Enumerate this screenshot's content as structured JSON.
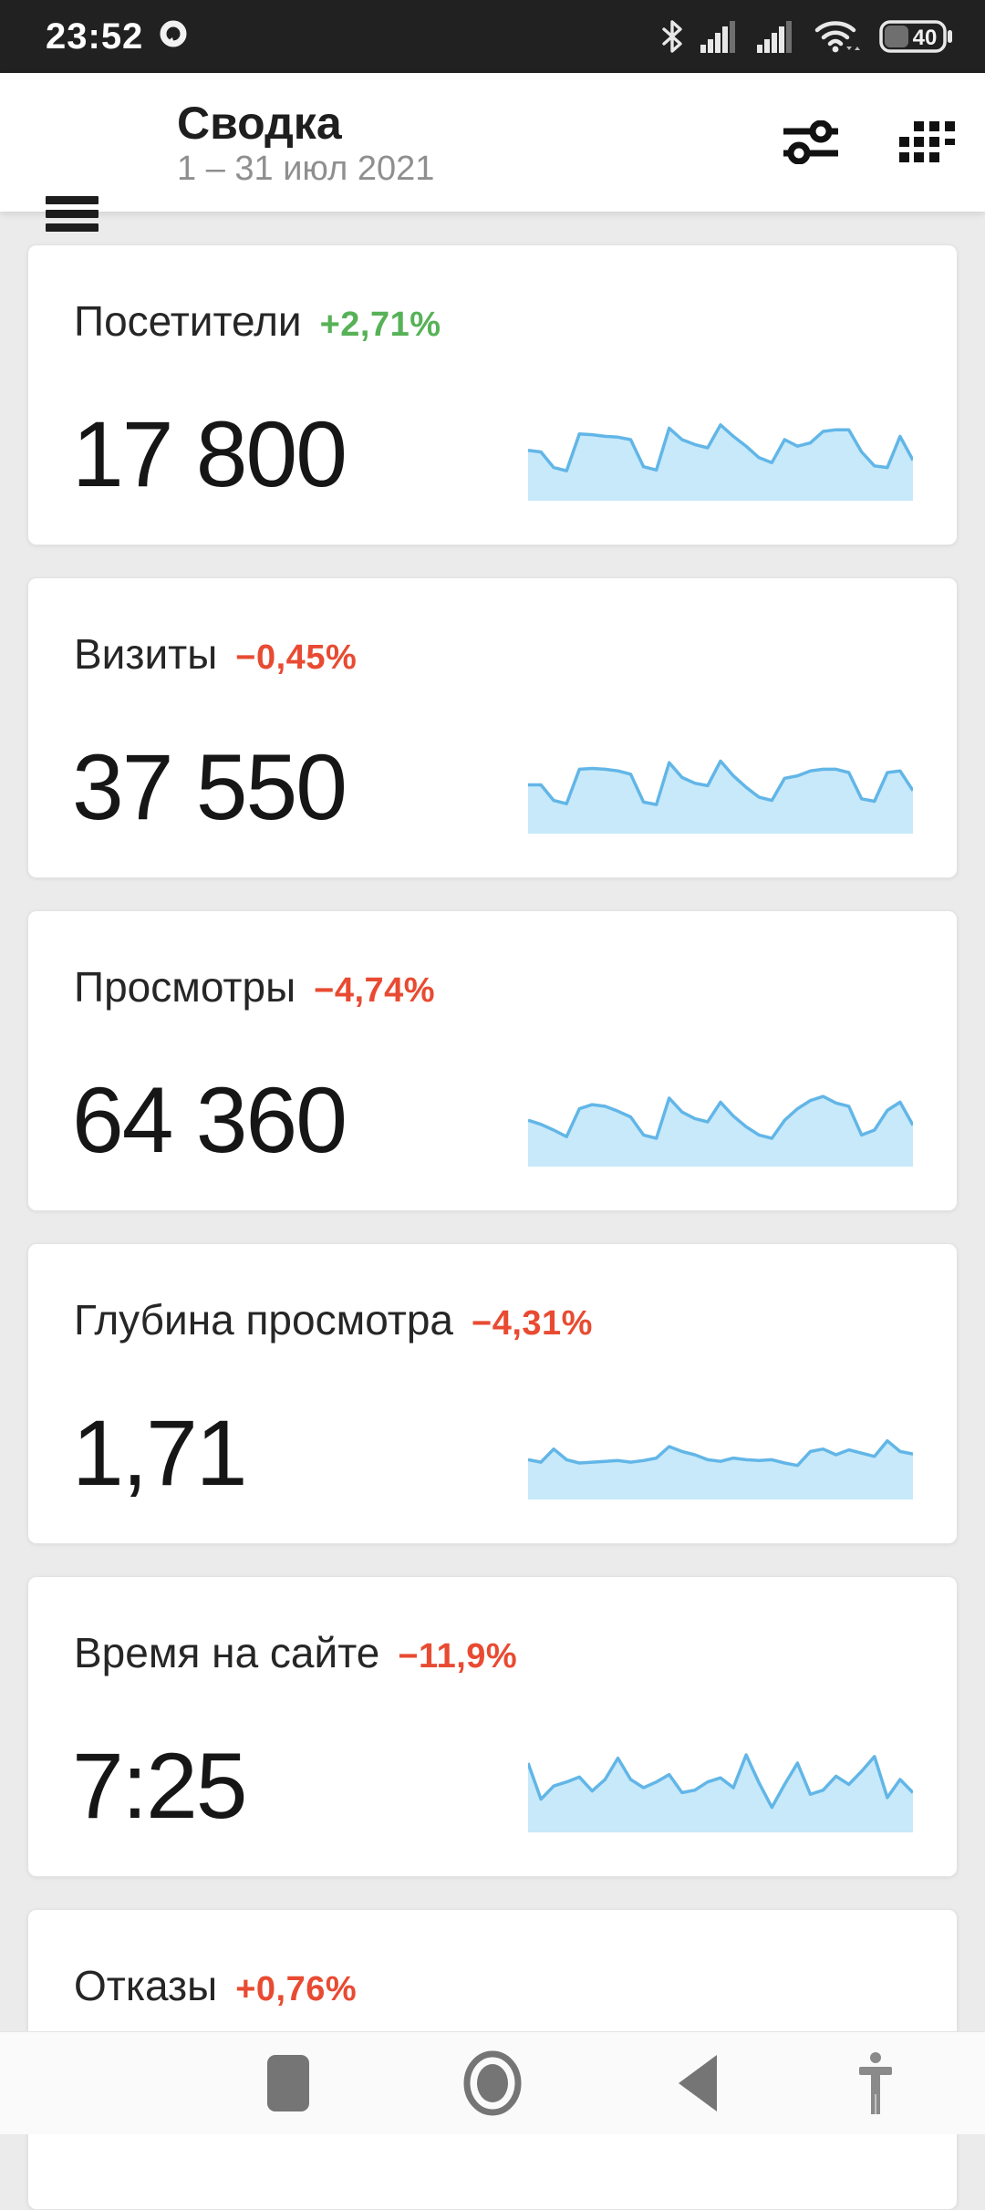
{
  "status_bar": {
    "time": "23:52",
    "battery_level": "40",
    "icons": [
      "notification-bubble",
      "bluetooth",
      "cell-signal-sim1",
      "cell-signal-sim2",
      "wifi",
      "battery"
    ]
  },
  "header": {
    "title": "Сводка",
    "date_range": "1 – 31 июл 2021",
    "actions": [
      "filters",
      "widgets-grid"
    ]
  },
  "colors": {
    "positive": "#57b257",
    "negative": "#e84b32",
    "spark_stroke": "#62b6e7",
    "spark_fill": "#c7e9fa",
    "statusbar_bg": "#212121",
    "page_bg": "#ebebeb"
  },
  "cards": [
    {
      "title": "Посетители",
      "delta": "+2,71%",
      "trend": "positive",
      "value": "17 800"
    },
    {
      "title": "Визиты",
      "delta": "−0,45%",
      "trend": "negative",
      "value": "37 550"
    },
    {
      "title": "Просмотры",
      "delta": "−4,74%",
      "trend": "negative",
      "value": "64 360"
    },
    {
      "title": "Глубина просмотра",
      "delta": "−4,31%",
      "trend": "negative",
      "value": "1,71"
    },
    {
      "title": "Время на сайте",
      "delta": "−11,9%",
      "trend": "negative",
      "value": "7:25"
    },
    {
      "title": "Отказы",
      "delta": "+0,76%",
      "trend": "negative",
      "value": ""
    }
  ],
  "chart_data": [
    {
      "type": "area",
      "metric": "Посетители",
      "period": "1 – 31 июл 2021",
      "ylim": [
        0,
        100
      ],
      "values": [
        57,
        55,
        36,
        32,
        77,
        76,
        74,
        73,
        70,
        37,
        33,
        84,
        70,
        64,
        60,
        88,
        74,
        62,
        48,
        42,
        70,
        62,
        66,
        80,
        82,
        82,
        55,
        38,
        36,
        74,
        45
      ]
    },
    {
      "type": "area",
      "metric": "Визиты",
      "period": "1 – 31 июл 2021",
      "ylim": [
        0,
        100
      ],
      "values": [
        55,
        55,
        36,
        32,
        74,
        75,
        74,
        72,
        68,
        34,
        31,
        82,
        64,
        57,
        54,
        84,
        66,
        52,
        40,
        36,
        63,
        66,
        72,
        74,
        74,
        70,
        38,
        35,
        70,
        72,
        48
      ]
    },
    {
      "type": "area",
      "metric": "Просмотры",
      "period": "1 – 31 июл 2021",
      "ylim": [
        0,
        100
      ],
      "values": [
        52,
        47,
        40,
        32,
        66,
        71,
        69,
        63,
        56,
        34,
        30,
        79,
        62,
        54,
        50,
        74,
        57,
        44,
        34,
        30,
        52,
        66,
        76,
        81,
        73,
        69,
        34,
        40,
        64,
        74,
        46
      ]
    },
    {
      "type": "area",
      "metric": "Глубина просмотра",
      "period": "1 – 31 июл 2021",
      "ylim": [
        0,
        100
      ],
      "values": [
        44,
        41,
        57,
        44,
        40,
        41,
        42,
        43,
        41,
        43,
        46,
        60,
        54,
        50,
        44,
        42,
        46,
        44,
        43,
        44,
        40,
        37,
        54,
        57,
        50,
        56,
        52,
        48,
        67,
        54,
        51
      ]
    },
    {
      "type": "area",
      "metric": "Время на сайте",
      "period": "1 – 31 июл 2021",
      "ylim": [
        0,
        100
      ],
      "values": [
        80,
        36,
        52,
        57,
        63,
        46,
        60,
        86,
        60,
        50,
        57,
        66,
        44,
        47,
        57,
        62,
        50,
        90,
        56,
        26,
        54,
        80,
        42,
        47,
        64,
        54,
        70,
        88,
        38,
        60,
        44
      ]
    }
  ],
  "nav": {
    "buttons": [
      "recents",
      "home",
      "back",
      "accessibility"
    ]
  }
}
